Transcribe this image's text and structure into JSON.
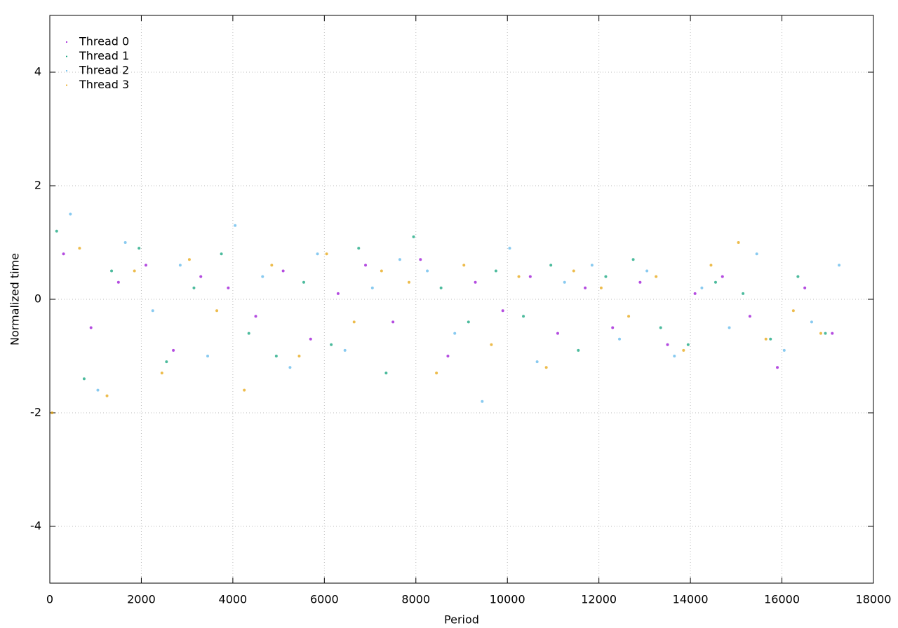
{
  "chart_data": {
    "type": "scatter",
    "x_label": "Period",
    "y_label": "Normalized time",
    "xlim": [
      0,
      18000
    ],
    "ylim": [
      -5,
      5
    ],
    "xticks": [
      0,
      2000,
      4000,
      6000,
      8000,
      10000,
      12000,
      14000,
      16000,
      18000
    ],
    "yticks": [
      -4,
      -2,
      0,
      2,
      4
    ],
    "grid": true,
    "legend": "top-left",
    "series": [
      {
        "name": "Thread 0",
        "color": "#9400d3",
        "x": [
          300,
          900,
          1500,
          2100,
          2700,
          3300,
          3900,
          4500,
          5100,
          5700,
          6300,
          6900,
          7500,
          8100,
          8700,
          9300,
          9900,
          10500,
          11100,
          11700,
          12300,
          12900,
          13500,
          14100,
          14700,
          15300,
          15900,
          16500,
          17100
        ],
        "values": [
          0.8,
          -0.5,
          0.3,
          0.6,
          -0.9,
          0.4,
          0.2,
          -0.3,
          0.5,
          -0.7,
          0.1,
          0.6,
          -0.4,
          0.7,
          -1.0,
          0.3,
          -0.2,
          0.4,
          -0.6,
          0.2,
          -0.5,
          0.3,
          -0.8,
          0.1,
          0.4,
          -0.3,
          -1.2,
          0.2,
          -0.6
        ]
      },
      {
        "name": "Thread 1",
        "color": "#009e73",
        "x": [
          150,
          750,
          1350,
          1950,
          2550,
          3150,
          3750,
          4350,
          4950,
          5550,
          6150,
          6750,
          7350,
          7950,
          8550,
          9150,
          9750,
          10350,
          10950,
          11550,
          12150,
          12750,
          13350,
          13950,
          14550,
          15150,
          15750,
          16350,
          16950
        ],
        "values": [
          1.2,
          -1.4,
          0.5,
          0.9,
          -1.1,
          0.2,
          0.8,
          -0.6,
          -1.0,
          0.3,
          -0.8,
          0.9,
          -1.3,
          1.1,
          0.2,
          -0.4,
          0.5,
          -0.3,
          0.6,
          -0.9,
          0.4,
          0.7,
          -0.5,
          -0.8,
          0.3,
          0.1,
          -0.7,
          0.4,
          -0.6
        ]
      },
      {
        "name": "Thread 2",
        "color": "#56b4e9",
        "x": [
          450,
          1050,
          1650,
          2250,
          2850,
          3450,
          4050,
          4650,
          5250,
          5850,
          6450,
          7050,
          7650,
          8250,
          8850,
          9450,
          10050,
          10650,
          11250,
          11850,
          12450,
          13050,
          13650,
          14250,
          14850,
          15450,
          16050,
          16650,
          17250
        ],
        "values": [
          1.5,
          -1.6,
          1.0,
          -0.2,
          0.6,
          -1.0,
          1.3,
          0.4,
          -1.2,
          0.8,
          -0.9,
          0.2,
          0.7,
          0.5,
          -0.6,
          -1.8,
          0.9,
          -1.1,
          0.3,
          0.6,
          -0.7,
          0.5,
          -1.0,
          0.2,
          -0.5,
          0.8,
          -0.9,
          -0.4,
          0.6
        ]
      },
      {
        "name": "Thread 3",
        "color": "#e69f00",
        "x": [
          50,
          650,
          1250,
          1850,
          2450,
          3050,
          3650,
          4250,
          4850,
          5450,
          6050,
          6650,
          7250,
          7850,
          8450,
          9050,
          9650,
          10250,
          10850,
          11450,
          12050,
          12650,
          13250,
          13850,
          14450,
          15050,
          15650,
          16250,
          16850
        ],
        "values": [
          -2.0,
          0.9,
          -1.7,
          0.5,
          -1.3,
          0.7,
          -0.2,
          -1.6,
          0.6,
          -1.0,
          0.8,
          -0.4,
          0.5,
          0.3,
          -1.3,
          0.6,
          -0.8,
          0.4,
          -1.2,
          0.5,
          0.2,
          -0.3,
          0.4,
          -0.9,
          0.6,
          1.0,
          -0.7,
          -0.2,
          -0.6
        ]
      }
    ]
  }
}
